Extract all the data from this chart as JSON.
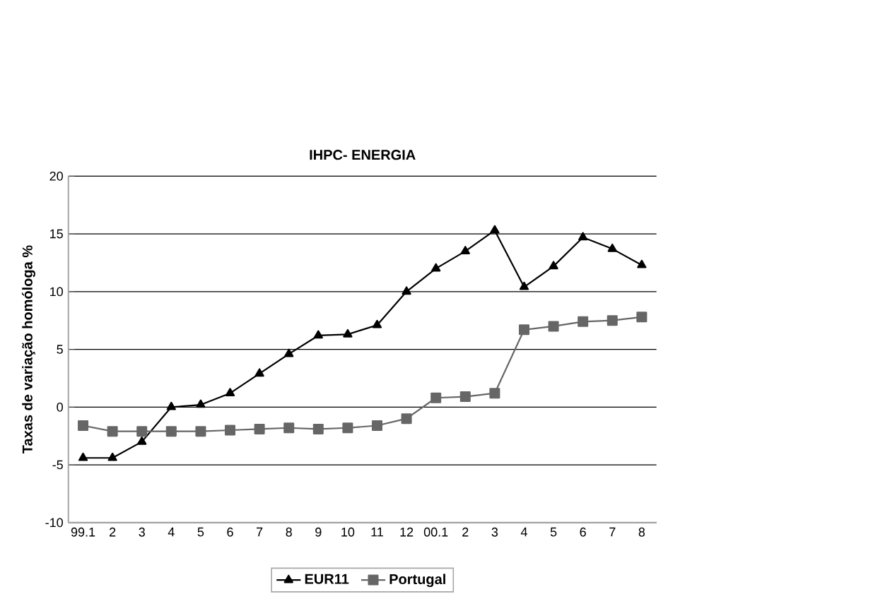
{
  "chart_data": {
    "type": "line",
    "title": "IHPC- ENERGIA",
    "ylabel": "Taxas de variação homóloga   %",
    "categories": [
      "99.1",
      "2",
      "3",
      "4",
      "5",
      "6",
      "7",
      "8",
      "9",
      "10",
      "11",
      "12",
      "00.1",
      "2",
      "3",
      "4",
      "5",
      "6",
      "7",
      "8"
    ],
    "series": [
      {
        "name": "EUR11",
        "color": "#000000",
        "marker": "triangle",
        "values": [
          -4.4,
          -4.4,
          -3,
          0,
          0.2,
          1.2,
          2.9,
          4.6,
          6.2,
          6.3,
          7.1,
          10,
          12,
          13.5,
          15.3,
          10.4,
          12.2,
          14.7,
          13.7,
          12.3
        ]
      },
      {
        "name": "Portugal",
        "color": "#666666",
        "marker": "square",
        "values": [
          -1.6,
          -2.1,
          -2.1,
          -2.1,
          -2.1,
          -2.0,
          -1.9,
          -1.8,
          -1.9,
          -1.8,
          -1.6,
          -1.0,
          0.8,
          0.9,
          1.2,
          6.7,
          7.0,
          7.4,
          7.5,
          7.8
        ]
      }
    ],
    "ylim": [
      -10,
      20
    ],
    "yticks": [
      -10,
      -5,
      0,
      5,
      10,
      15,
      20
    ],
    "grid": "y",
    "legend": "bottom"
  }
}
